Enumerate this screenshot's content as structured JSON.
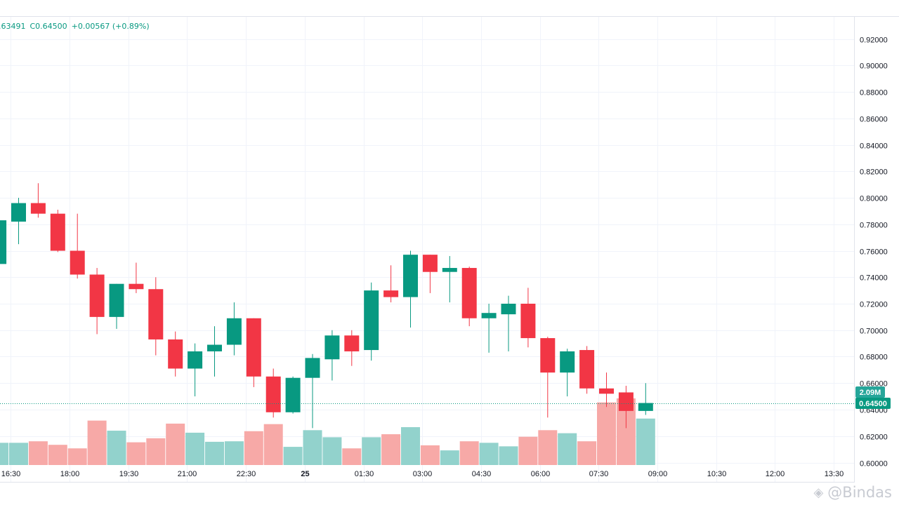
{
  "legend": {
    "close_prefix_partial": ".63491",
    "close_label": "C0.64500",
    "change": "+0.00567 (+0.89%)"
  },
  "watermark": {
    "text": "@Bindas",
    "icon": "tv-logo-icon"
  },
  "price_label": {
    "volume": "2.09M",
    "price": "0.64500"
  },
  "colors": {
    "up": "#089981",
    "down": "#f23645",
    "vol_up": "#92d2cc",
    "vol_down": "#f7a9a7",
    "grid": "#f0f3fa",
    "axis_text": "#131722",
    "border": "#e0e3eb"
  },
  "chart_data": {
    "type": "candlestick",
    "ylim": [
      0.6,
      0.92
    ],
    "y_ticks": [
      "0.92000",
      "0.90000",
      "0.88000",
      "0.86000",
      "0.84000",
      "0.82000",
      "0.80000",
      "0.78000",
      "0.76000",
      "0.74000",
      "0.72000",
      "0.70000",
      "0.68000",
      "0.66000",
      "0.64000",
      "0.62000",
      "0.60000"
    ],
    "x_tick_labels": [
      {
        "label": "16:30",
        "idx": 0.6
      },
      {
        "label": "18:00",
        "idx": 3.6
      },
      {
        "label": "19:30",
        "idx": 6.6
      },
      {
        "label": "21:00",
        "idx": 9.6
      },
      {
        "label": "22:30",
        "idx": 12.6
      },
      {
        "label": "25",
        "idx": 15.6,
        "bold": true
      },
      {
        "label": "01:30",
        "idx": 18.6
      },
      {
        "label": "03:00",
        "idx": 21.6
      },
      {
        "label": "04:30",
        "idx": 24.6
      },
      {
        "label": "06:00",
        "idx": 27.6
      },
      {
        "label": "07:30",
        "idx": 30.6
      },
      {
        "label": "09:00",
        "idx": 33.6
      },
      {
        "label": "10:30",
        "idx": 36.6
      },
      {
        "label": "12:00",
        "idx": 39.6
      },
      {
        "label": "13:30",
        "idx": 42.6
      }
    ],
    "candles": [
      {
        "o": 0.75,
        "h": 0.784,
        "l": 0.748,
        "c": 0.783
      },
      {
        "o": 0.782,
        "h": 0.8,
        "l": 0.765,
        "c": 0.796
      },
      {
        "o": 0.796,
        "h": 0.811,
        "l": 0.785,
        "c": 0.788
      },
      {
        "o": 0.788,
        "h": 0.791,
        "l": 0.759,
        "c": 0.76
      },
      {
        "o": 0.76,
        "h": 0.788,
        "l": 0.739,
        "c": 0.742
      },
      {
        "o": 0.742,
        "h": 0.747,
        "l": 0.697,
        "c": 0.71
      },
      {
        "o": 0.71,
        "h": 0.735,
        "l": 0.701,
        "c": 0.735
      },
      {
        "o": 0.735,
        "h": 0.751,
        "l": 0.728,
        "c": 0.731
      },
      {
        "o": 0.731,
        "h": 0.74,
        "l": 0.681,
        "c": 0.693
      },
      {
        "o": 0.693,
        "h": 0.699,
        "l": 0.665,
        "c": 0.671
      },
      {
        "o": 0.671,
        "h": 0.69,
        "l": 0.65,
        "c": 0.684
      },
      {
        "o": 0.684,
        "h": 0.703,
        "l": 0.665,
        "c": 0.689
      },
      {
        "o": 0.689,
        "h": 0.721,
        "l": 0.681,
        "c": 0.709
      },
      {
        "o": 0.709,
        "h": 0.709,
        "l": 0.657,
        "c": 0.665
      },
      {
        "o": 0.665,
        "h": 0.671,
        "l": 0.634,
        "c": 0.638
      },
      {
        "o": 0.638,
        "h": 0.665,
        "l": 0.637,
        "c": 0.664
      },
      {
        "o": 0.664,
        "h": 0.682,
        "l": 0.626,
        "c": 0.679
      },
      {
        "o": 0.678,
        "h": 0.7,
        "l": 0.662,
        "c": 0.696
      },
      {
        "o": 0.696,
        "h": 0.7,
        "l": 0.673,
        "c": 0.684
      },
      {
        "o": 0.685,
        "h": 0.736,
        "l": 0.677,
        "c": 0.73
      },
      {
        "o": 0.73,
        "h": 0.749,
        "l": 0.721,
        "c": 0.725
      },
      {
        "o": 0.725,
        "h": 0.76,
        "l": 0.702,
        "c": 0.757
      },
      {
        "o": 0.757,
        "h": 0.757,
        "l": 0.728,
        "c": 0.744
      },
      {
        "o": 0.744,
        "h": 0.756,
        "l": 0.721,
        "c": 0.747
      },
      {
        "o": 0.747,
        "h": 0.748,
        "l": 0.703,
        "c": 0.709
      },
      {
        "o": 0.709,
        "h": 0.72,
        "l": 0.683,
        "c": 0.713
      },
      {
        "o": 0.712,
        "h": 0.726,
        "l": 0.684,
        "c": 0.72
      },
      {
        "o": 0.72,
        "h": 0.732,
        "l": 0.687,
        "c": 0.694
      },
      {
        "o": 0.694,
        "h": 0.695,
        "l": 0.634,
        "c": 0.668
      },
      {
        "o": 0.668,
        "h": 0.686,
        "l": 0.65,
        "c": 0.684
      },
      {
        "o": 0.685,
        "h": 0.688,
        "l": 0.652,
        "c": 0.656
      },
      {
        "o": 0.656,
        "h": 0.668,
        "l": 0.642,
        "c": 0.652
      },
      {
        "o": 0.653,
        "h": 0.658,
        "l": 0.626,
        "c": 0.639
      },
      {
        "o": 0.639,
        "h": 0.66,
        "l": 0.636,
        "c": 0.645
      }
    ],
    "volume_relative": [
      0.44,
      0.44,
      0.47,
      0.4,
      0.33,
      0.88,
      0.68,
      0.45,
      0.53,
      0.82,
      0.64,
      0.46,
      0.47,
      0.67,
      0.81,
      0.36,
      0.69,
      0.55,
      0.33,
      0.55,
      0.61,
      0.75,
      0.39,
      0.29,
      0.47,
      0.44,
      0.37,
      0.56,
      0.69,
      0.63,
      0.47,
      1.24,
      1.32,
      0.92
    ]
  }
}
